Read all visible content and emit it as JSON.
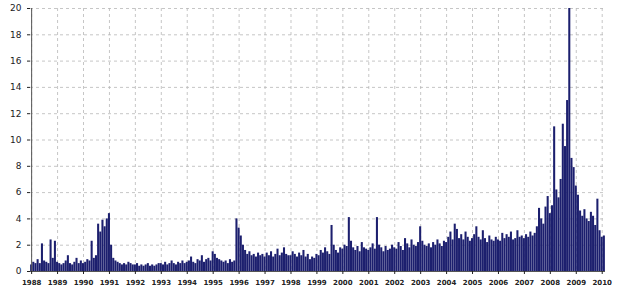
{
  "chart_data": {
    "type": "bar",
    "categories": [
      "1988",
      null,
      null,
      null,
      null,
      null,
      null,
      null,
      null,
      null,
      null,
      null,
      "1989",
      null,
      null,
      null,
      null,
      null,
      null,
      null,
      null,
      null,
      null,
      null,
      "1990",
      null,
      null,
      null,
      null,
      null,
      null,
      null,
      null,
      null,
      null,
      null,
      "1991",
      null,
      null,
      null,
      null,
      null,
      null,
      null,
      null,
      null,
      null,
      null,
      "1992",
      null,
      null,
      null,
      null,
      null,
      null,
      null,
      null,
      null,
      null,
      null,
      "1993",
      null,
      null,
      null,
      null,
      null,
      null,
      null,
      null,
      null,
      null,
      null,
      "1994",
      null,
      null,
      null,
      null,
      null,
      null,
      null,
      null,
      null,
      null,
      null,
      "1995",
      null,
      null,
      null,
      null,
      null,
      null,
      null,
      null,
      null,
      null,
      null,
      "1996",
      null,
      null,
      null,
      null,
      null,
      null,
      null,
      null,
      null,
      null,
      null,
      "1997",
      null,
      null,
      null,
      null,
      null,
      null,
      null,
      null,
      null,
      null,
      null,
      "1998",
      null,
      null,
      null,
      null,
      null,
      null,
      null,
      null,
      null,
      null,
      null,
      "1999",
      null,
      null,
      null,
      null,
      null,
      null,
      null,
      null,
      null,
      null,
      null,
      "2000",
      null,
      null,
      null,
      null,
      null,
      null,
      null,
      null,
      null,
      null,
      null,
      "2001",
      null,
      null,
      null,
      null,
      null,
      null,
      null,
      null,
      null,
      null,
      null,
      "2002",
      null,
      null,
      null,
      null,
      null,
      null,
      null,
      null,
      null,
      null,
      null,
      "2003",
      null,
      null,
      null,
      null,
      null,
      null,
      null,
      null,
      null,
      null,
      null,
      "2004",
      null,
      null,
      null,
      null,
      null,
      null,
      null,
      null,
      null,
      null,
      null,
      "2005",
      null,
      null,
      null,
      null,
      null,
      null,
      null,
      null,
      null,
      null,
      null,
      "2006",
      null,
      null,
      null,
      null,
      null,
      null,
      null,
      null,
      null,
      null,
      null,
      "2007",
      null,
      null,
      null,
      null,
      null,
      null,
      null,
      null,
      null,
      null,
      null,
      "2008",
      null,
      null,
      null,
      null,
      null,
      null,
      null,
      null,
      null,
      null,
      null,
      "2009",
      null,
      null,
      null,
      null,
      null,
      null,
      null,
      null,
      null,
      null,
      null,
      "2010",
      null
    ],
    "values": [
      0.5,
      0.7,
      0.6,
      0.9,
      0.6,
      2.1,
      0.8,
      0.7,
      0.6,
      2.4,
      1.0,
      2.3,
      0.7,
      0.6,
      0.5,
      0.6,
      0.8,
      1.2,
      0.6,
      0.5,
      0.7,
      1.0,
      0.6,
      0.8,
      0.6,
      0.7,
      0.9,
      0.8,
      2.3,
      1.0,
      1.2,
      3.6,
      3.0,
      3.9,
      3.4,
      4.0,
      4.4,
      2.0,
      1.0,
      0.8,
      0.7,
      0.6,
      0.5,
      0.6,
      0.5,
      0.7,
      0.6,
      0.5,
      0.5,
      0.6,
      0.4,
      0.5,
      0.4,
      0.5,
      0.6,
      0.4,
      0.5,
      0.4,
      0.5,
      0.6,
      0.6,
      0.5,
      0.7,
      0.5,
      0.6,
      0.8,
      0.6,
      0.5,
      0.7,
      0.6,
      0.8,
      0.6,
      0.7,
      0.8,
      1.1,
      0.7,
      0.6,
      0.9,
      0.8,
      1.2,
      0.7,
      0.9,
      1.0,
      0.8,
      1.5,
      1.3,
      1.0,
      0.9,
      0.8,
      0.7,
      0.8,
      0.6,
      0.9,
      0.7,
      0.8,
      4.0,
      3.3,
      2.7,
      2.0,
      1.6,
      1.3,
      1.5,
      1.2,
      1.3,
      1.1,
      1.4,
      1.2,
      1.3,
      1.1,
      1.4,
      1.2,
      1.5,
      1.1,
      1.3,
      1.7,
      1.2,
      1.4,
      1.8,
      1.3,
      1.2,
      1.2,
      1.5,
      1.3,
      1.1,
      1.4,
      1.2,
      1.6,
      1.1,
      1.3,
      0.9,
      1.1,
      1.0,
      1.3,
      1.2,
      1.6,
      1.4,
      1.8,
      1.5,
      1.3,
      3.5,
      2.0,
      1.6,
      1.4,
      1.8,
      1.7,
      2.0,
      1.9,
      4.1,
      2.3,
      1.8,
      1.6,
      1.9,
      1.5,
      2.2,
      1.8,
      1.7,
      1.6,
      1.8,
      2.1,
      1.7,
      4.1,
      2.0,
      1.8,
      1.5,
      1.9,
      1.6,
      1.7,
      2.0,
      1.8,
      1.7,
      2.2,
      1.9,
      1.6,
      2.5,
      2.1,
      1.8,
      2.4,
      2.0,
      1.9,
      2.2,
      3.4,
      2.3,
      2.0,
      1.9,
      2.1,
      1.8,
      2.2,
      2.0,
      2.4,
      2.1,
      1.9,
      2.3,
      2.2,
      2.6,
      3.0,
      2.4,
      3.6,
      3.2,
      2.5,
      2.8,
      2.4,
      3.0,
      2.6,
      2.3,
      2.5,
      2.8,
      3.4,
      2.6,
      2.4,
      3.1,
      2.5,
      2.2,
      2.7,
      2.4,
      2.3,
      2.6,
      2.4,
      2.3,
      2.9,
      2.5,
      2.8,
      2.6,
      3.0,
      2.4,
      2.5,
      3.1,
      2.6,
      2.7,
      2.5,
      2.8,
      2.6,
      3.0,
      2.7,
      2.9,
      3.4,
      4.8,
      4.0,
      3.6,
      4.9,
      5.7,
      4.4,
      5.0,
      11.0,
      6.2,
      5.6,
      7.0,
      11.2,
      9.5,
      13.0,
      20.0,
      8.6,
      7.9,
      6.5,
      5.8,
      4.6,
      4.2,
      4.7,
      4.0,
      3.8,
      4.5,
      4.2,
      3.5,
      5.5,
      3.1,
      2.6,
      2.7
    ],
    "color": "#1c1f6e",
    "ylim": [
      0,
      20
    ],
    "yticks": [
      0,
      2,
      4,
      6,
      8,
      10,
      12,
      14,
      16,
      18,
      20
    ],
    "grid": true
  }
}
